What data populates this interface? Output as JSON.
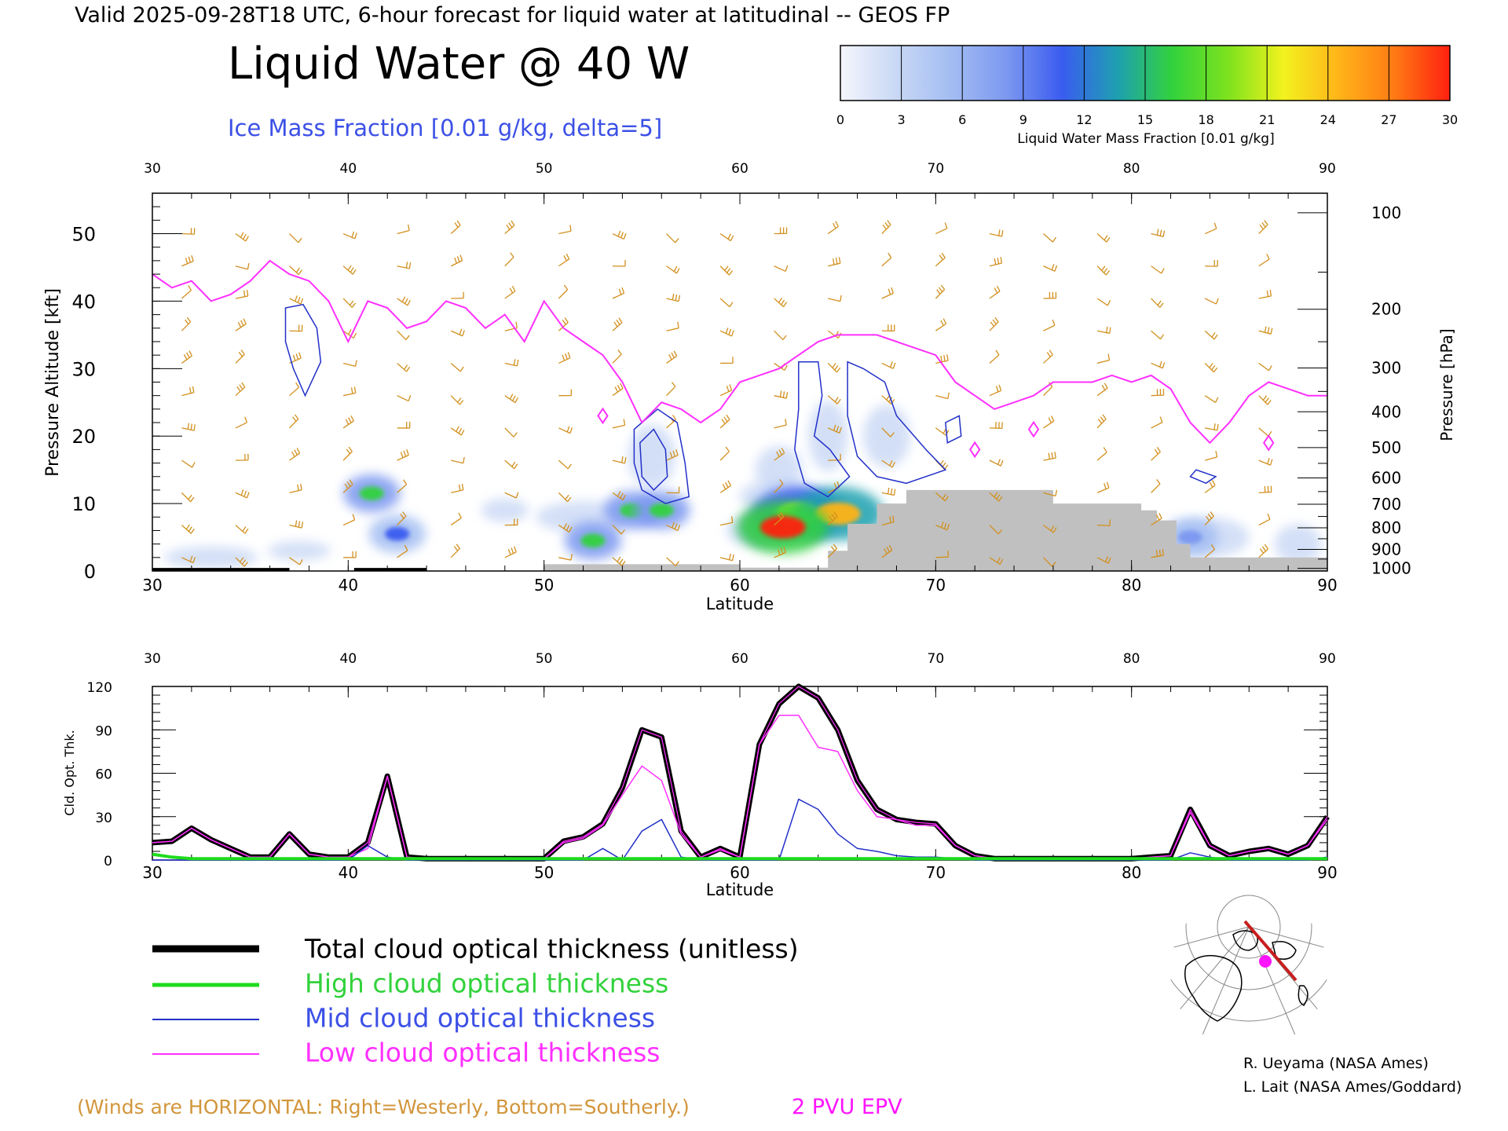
{
  "header": {
    "valid_line": "Valid 2025-09-28T18 UTC, 6-hour forecast for liquid water at latitudinal -- GEOS FP",
    "title": "Liquid Water @ 40 W",
    "subtitle": "Ice Mass Fraction [0.01 g/kg, delta=5]"
  },
  "colorbar": {
    "label": "Liquid Water Mass Fraction [0.01 g/kg]",
    "ticks": [
      "0",
      "3",
      "6",
      "9",
      "12",
      "15",
      "18",
      "21",
      "24",
      "27",
      "30"
    ],
    "colors": [
      "#f4f6fc",
      "#c9d8f5",
      "#a3bdf2",
      "#7c98f0",
      "#3a5cf0",
      "#1ea0b0",
      "#32d23c",
      "#7de21e",
      "#f2f21e",
      "#ffb419",
      "#ff7a14",
      "#ff2010"
    ]
  },
  "colors": {
    "ice_contour": "#2230c8",
    "tropopause": "#ff30ff",
    "wind": "#d2901e",
    "terrain": "#c0c0c0",
    "subtitle": "#3c50e6",
    "wind_note": "#d2963c",
    "pvu": "#ff14ff"
  },
  "chart_data": [
    {
      "type": "heatmap",
      "name": "latitude-altitude cross section",
      "xlabel": "Latitude",
      "ylabel": "Pressure Altitude [kft]",
      "y2label": "Pressure [hPa]",
      "xlim": [
        30,
        90
      ],
      "ylim": [
        0,
        56
      ],
      "x_ticks": [
        "30",
        "40",
        "50",
        "60",
        "70",
        "80",
        "90"
      ],
      "y_ticks": [
        "0",
        "10",
        "20",
        "30",
        "40",
        "50"
      ],
      "pressure_ticks": [
        "100",
        "200",
        "300",
        "400",
        "500",
        "600",
        "700",
        "800",
        "900",
        "1000"
      ],
      "pressure_tick_kft": [
        53.1,
        38.8,
        30.1,
        23.6,
        18.3,
        13.8,
        9.9,
        6.4,
        3.2,
        0.4
      ],
      "liquid_water_blobs": [
        {
          "lat": 41.2,
          "kft": 11.5,
          "value": 15
        },
        {
          "lat": 52.5,
          "kft": 4.5,
          "value": 15
        },
        {
          "lat": 54.5,
          "kft": 9,
          "value": 16
        },
        {
          "lat": 56,
          "kft": 9,
          "value": 16
        },
        {
          "lat": 61.5,
          "kft": 6.5,
          "value": 16
        },
        {
          "lat": 63,
          "kft": 8.5,
          "value": 22
        },
        {
          "lat": 65,
          "kft": 8.5,
          "value": 24
        },
        {
          "lat": 62.2,
          "kft": 6.5,
          "value": 30
        },
        {
          "lat": 42.5,
          "kft": 5.5,
          "value": 11
        },
        {
          "lat": 83,
          "kft": 5,
          "value": 9
        }
      ],
      "tropopause_2pvu": {
        "lat": [
          30,
          31,
          32,
          33,
          34,
          35,
          36,
          37,
          38,
          39,
          40,
          41,
          42,
          43,
          44,
          45,
          46,
          47,
          48,
          49,
          50,
          51,
          52,
          53,
          54,
          55,
          56,
          57,
          58,
          59,
          60,
          61,
          62,
          63,
          64,
          65,
          66,
          67,
          68,
          69,
          70,
          71,
          72,
          73,
          74,
          75,
          76,
          77,
          78,
          79,
          80,
          81,
          82,
          83,
          84,
          85,
          86,
          87,
          88,
          89,
          90
        ],
        "kft": [
          44,
          42,
          43,
          40,
          41,
          43,
          46,
          44,
          43,
          40,
          34,
          40,
          39,
          36,
          37,
          40,
          39,
          36,
          38,
          34,
          40,
          36,
          34,
          32,
          28,
          22,
          25,
          24,
          22,
          24,
          28,
          29,
          30,
          32,
          34,
          35,
          35,
          35,
          34,
          33,
          32,
          28,
          26,
          24,
          25,
          26,
          28,
          28,
          28,
          29,
          28,
          29,
          27,
          22,
          19,
          22,
          26,
          28,
          27,
          26,
          26
        ]
      },
      "surface_pressure_hPa_shown": "1000",
      "legend_note": "(Winds are HORIZONTAL: Right=Westerly, Bottom=Southerly.)",
      "pvu_label": "2 PVU EPV"
    },
    {
      "type": "line",
      "name": "cloud optical thickness",
      "xlabel": "Latitude",
      "ylabel": "Cld. Opt. Thk.",
      "xlim": [
        30,
        90
      ],
      "ylim": [
        0,
        120
      ],
      "x_ticks": [
        "30",
        "40",
        "50",
        "60",
        "70",
        "80",
        "90"
      ],
      "y_ticks": [
        "0",
        "30",
        "60",
        "90",
        "120"
      ],
      "x": [
        30,
        31,
        32,
        33,
        34,
        35,
        36,
        37,
        38,
        39,
        40,
        41,
        42,
        43,
        44,
        45,
        46,
        47,
        48,
        49,
        50,
        51,
        52,
        53,
        54,
        55,
        56,
        57,
        58,
        59,
        60,
        61,
        62,
        63,
        64,
        65,
        66,
        67,
        68,
        69,
        70,
        71,
        72,
        73,
        74,
        75,
        76,
        77,
        78,
        79,
        80,
        81,
        82,
        83,
        84,
        85,
        86,
        87,
        88,
        89,
        90
      ],
      "series": [
        {
          "name": "Total cloud optical thickness (unitless)",
          "color": "#000000",
          "width": 7,
          "values": [
            12,
            13,
            22,
            14,
            8,
            2,
            2,
            18,
            4,
            2,
            2,
            12,
            58,
            2,
            1,
            1,
            1,
            1,
            1,
            1,
            1,
            13,
            16,
            25,
            50,
            90,
            85,
            20,
            2,
            8,
            2,
            80,
            108,
            120,
            112,
            90,
            55,
            35,
            28,
            26,
            25,
            10,
            3,
            1,
            1,
            1,
            1,
            1,
            1,
            1,
            1,
            2,
            3,
            35,
            10,
            3,
            6,
            8,
            4,
            10,
            30
          ]
        },
        {
          "name": "High cloud optical thickness",
          "color": "#1edc1e",
          "width": 4,
          "values": [
            4,
            2,
            1,
            1,
            1,
            1,
            1,
            1,
            1,
            1,
            1,
            1,
            1,
            1,
            1,
            1,
            1,
            1,
            1,
            1,
            1,
            1,
            1,
            1,
            1,
            1,
            1,
            1,
            1,
            1,
            1,
            1,
            1,
            1,
            1,
            1,
            1,
            1,
            1,
            1,
            1,
            1,
            1,
            1,
            1,
            1,
            1,
            1,
            1,
            1,
            1,
            1,
            1,
            1,
            1,
            1,
            1,
            1,
            1,
            1,
            1
          ]
        },
        {
          "name": "Mid cloud optical thickness",
          "color": "#2230c8",
          "width": 1.5,
          "values": [
            0,
            0,
            0,
            0,
            0,
            0,
            0,
            0,
            0,
            0,
            0,
            10,
            2,
            0,
            0,
            0,
            0,
            0,
            0,
            0,
            0,
            0,
            0,
            8,
            0,
            20,
            28,
            2,
            0,
            0,
            0,
            0,
            0,
            42,
            35,
            18,
            8,
            6,
            3,
            2,
            2,
            1,
            0,
            0,
            0,
            0,
            0,
            0,
            0,
            0,
            0,
            0,
            0,
            5,
            2,
            0,
            0,
            0,
            0,
            0,
            2
          ]
        },
        {
          "name": "Low cloud optical thickness",
          "color": "#ff30ff",
          "width": 1.5,
          "values": [
            12,
            13,
            22,
            14,
            8,
            2,
            2,
            18,
            4,
            2,
            2,
            8,
            58,
            2,
            1,
            1,
            1,
            1,
            1,
            1,
            1,
            12,
            15,
            24,
            45,
            65,
            55,
            18,
            2,
            7,
            2,
            80,
            100,
            100,
            78,
            75,
            48,
            30,
            28,
            24,
            24,
            10,
            3,
            1,
            1,
            1,
            1,
            1,
            1,
            1,
            1,
            2,
            3,
            33,
            10,
            3,
            6,
            8,
            4,
            10,
            28
          ]
        }
      ]
    }
  ],
  "legend": {
    "total": "Total cloud optical thickness (unitless)",
    "high": "High cloud optical thickness",
    "mid": "Mid cloud optical thickness",
    "low": "Low cloud optical thickness"
  },
  "credits": {
    "line1": "R. Ueyama (NASA Ames)",
    "line2": "L. Lait (NASA Ames/Goddard)"
  },
  "inset_map": {
    "icon": "polar-map-icon"
  }
}
